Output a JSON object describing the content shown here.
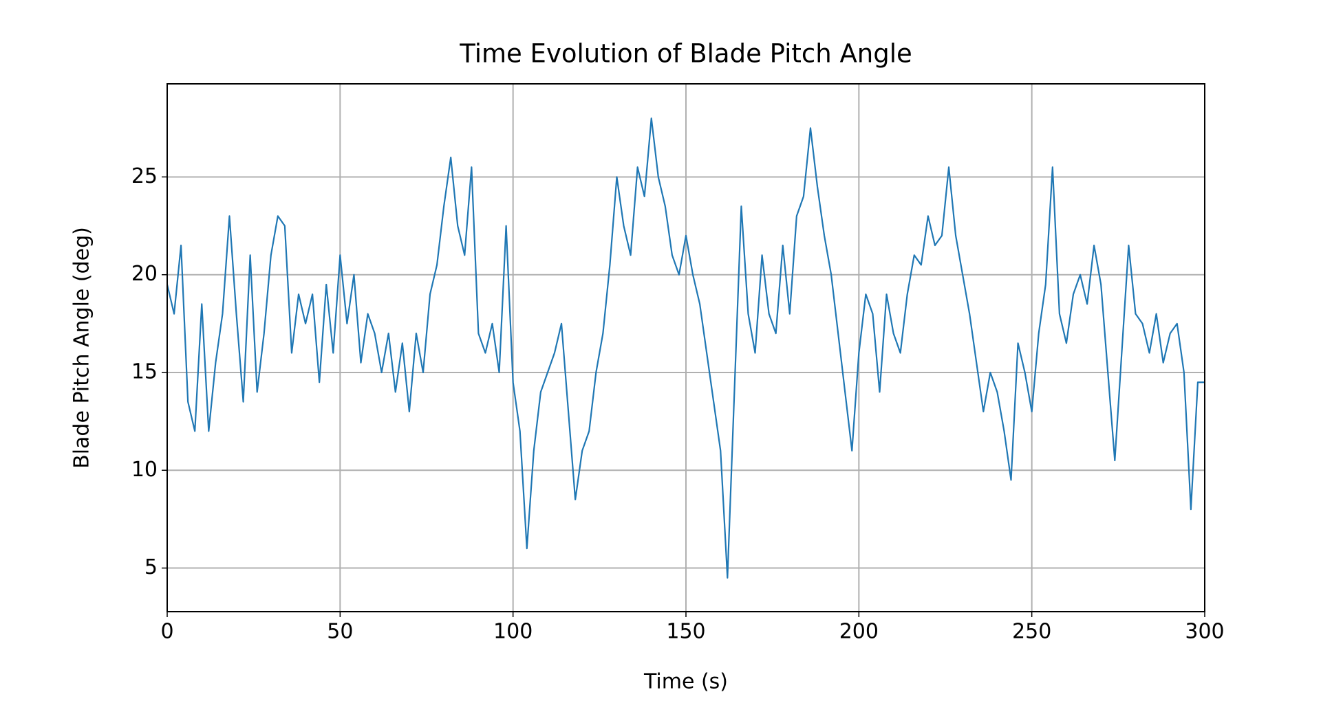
{
  "chart_data": {
    "type": "line",
    "title": "Time Evolution of Blade Pitch Angle",
    "x_label": "Time (s)",
    "y_label": "Blade Pitch Angle (deg)",
    "x": [
      0,
      2,
      4,
      6,
      8,
      10,
      12,
      14,
      16,
      18,
      20,
      22,
      24,
      26,
      28,
      30,
      32,
      34,
      36,
      38,
      40,
      42,
      44,
      46,
      48,
      50,
      52,
      54,
      56,
      58,
      60,
      62,
      64,
      66,
      68,
      70,
      72,
      74,
      76,
      78,
      80,
      82,
      84,
      86,
      88,
      90,
      92,
      94,
      96,
      98,
      100,
      102,
      104,
      106,
      108,
      110,
      112,
      114,
      116,
      118,
      120,
      122,
      124,
      126,
      128,
      130,
      132,
      134,
      136,
      138,
      140,
      142,
      144,
      146,
      148,
      150,
      152,
      154,
      156,
      158,
      160,
      162,
      164,
      166,
      168,
      170,
      172,
      174,
      176,
      178,
      180,
      182,
      184,
      186,
      188,
      190,
      192,
      194,
      196,
      198,
      200,
      202,
      204,
      206,
      208,
      210,
      212,
      214,
      216,
      218,
      220,
      222,
      224,
      226,
      228,
      230,
      232,
      234,
      236,
      238,
      240,
      242,
      244,
      246,
      248,
      250,
      252,
      254,
      256,
      258,
      260,
      262,
      264,
      266,
      268,
      270,
      272,
      274,
      276,
      278,
      280,
      282,
      284,
      286,
      288,
      290,
      292,
      294,
      296,
      298,
      300
    ],
    "values": [
      19.5,
      18,
      21.5,
      13.5,
      12,
      18.5,
      12,
      15.5,
      18,
      23,
      18,
      13.5,
      21,
      14,
      17,
      21,
      23,
      22.5,
      16,
      19,
      17.5,
      19,
      14.5,
      19.5,
      16,
      21,
      17.5,
      20,
      15.5,
      18,
      17,
      15,
      17,
      14,
      16.5,
      13,
      17,
      15,
      19,
      20.5,
      23.5,
      26,
      22.5,
      21,
      25.5,
      17,
      16,
      17.5,
      15,
      22.5,
      14.5,
      12,
      6,
      11,
      14,
      15,
      16,
      17.5,
      13,
      8.5,
      11,
      12,
      15,
      17,
      20.5,
      25,
      22.5,
      21,
      25.5,
      24,
      28,
      25,
      23.5,
      21,
      20,
      22,
      20,
      18.5,
      16,
      13.5,
      11,
      4.5,
      14,
      23.5,
      18,
      16,
      21,
      18,
      17,
      21.5,
      18,
      23,
      24,
      27.5,
      24.5,
      22,
      20,
      17,
      14,
      11,
      16,
      19,
      18,
      14,
      19,
      17,
      16,
      19,
      21,
      20.5,
      23,
      21.5,
      22,
      25.5,
      22,
      20,
      18,
      15.5,
      13,
      15,
      14,
      12,
      9.5,
      16.5,
      15,
      13,
      17,
      19.5,
      25.5,
      18,
      16.5,
      19,
      20,
      18.5,
      21.5,
      19.5,
      15,
      10.5,
      16,
      21.5,
      18,
      17.5,
      16,
      18,
      15.5,
      17,
      17.5,
      15,
      8,
      14.5,
      14.5
    ],
    "color": "#1f77b4",
    "xlim": [
      0,
      300
    ],
    "xticks": [
      0,
      50,
      100,
      150,
      200,
      250,
      300
    ],
    "ylim": [
      2.77,
      29.76
    ],
    "yticks": [
      5,
      10,
      15,
      20,
      25
    ],
    "grid": true
  }
}
